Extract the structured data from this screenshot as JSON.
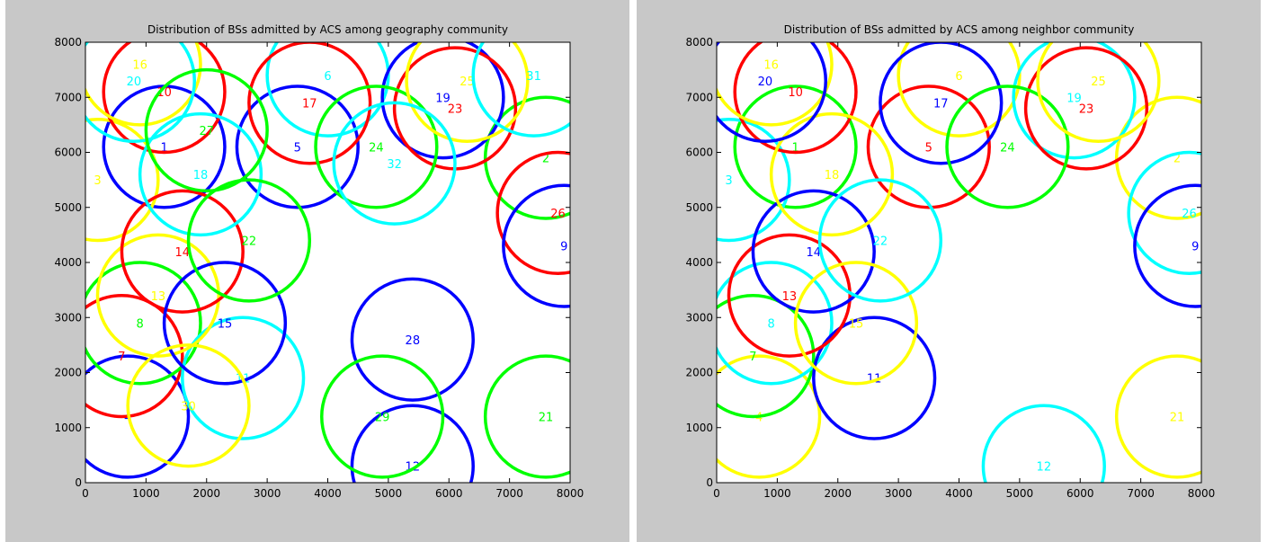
{
  "colors": {
    "red": "#ff0000",
    "green": "#00ff00",
    "blue": "#0000ff",
    "cyan": "#00ffff",
    "yellow": "#ffff00",
    "figure_bg": "#c8c8c8"
  },
  "chart_data": [
    {
      "type": "scatter",
      "title": "Distribution of BSs admitted by ACS among geography community",
      "xlabel": "",
      "ylabel": "",
      "xlim": [
        0,
        8000
      ],
      "ylim": [
        0,
        8000
      ],
      "xticks": [
        0,
        1000,
        2000,
        3000,
        4000,
        5000,
        6000,
        7000,
        8000
      ],
      "yticks": [
        0,
        1000,
        2000,
        3000,
        4000,
        5000,
        6000,
        7000,
        8000
      ],
      "grid": false,
      "radius": 1000,
      "circles": [
        {
          "id": "1",
          "x": 1300,
          "y": 6100,
          "color": "blue"
        },
        {
          "id": "2",
          "x": 7600,
          "y": 5900,
          "color": "green"
        },
        {
          "id": "3",
          "x": 200,
          "y": 5500,
          "color": "yellow"
        },
        {
          "id": "4",
          "x": 700,
          "y": 1200,
          "color": "blue"
        },
        {
          "id": "5",
          "x": 3500,
          "y": 6100,
          "color": "blue"
        },
        {
          "id": "6",
          "x": 4000,
          "y": 7400,
          "color": "cyan"
        },
        {
          "id": "7",
          "x": 600,
          "y": 2300,
          "color": "red"
        },
        {
          "id": "8",
          "x": 900,
          "y": 2900,
          "color": "green"
        },
        {
          "id": "10",
          "x": 1300,
          "y": 7100,
          "color": "red"
        },
        {
          "id": "11",
          "x": 2600,
          "y": 1900,
          "color": "cyan"
        },
        {
          "id": "12",
          "x": 5400,
          "y": 300,
          "color": "blue"
        },
        {
          "id": "13",
          "x": 1200,
          "y": 3400,
          "color": "yellow"
        },
        {
          "id": "14",
          "x": 1600,
          "y": 4200,
          "color": "red"
        },
        {
          "id": "15",
          "x": 2300,
          "y": 2900,
          "color": "blue"
        },
        {
          "id": "16",
          "x": 900,
          "y": 7600,
          "color": "yellow"
        },
        {
          "id": "17",
          "x": 3700,
          "y": 6900,
          "color": "red"
        },
        {
          "id": "18",
          "x": 1900,
          "y": 5600,
          "color": "cyan"
        },
        {
          "id": "19",
          "x": 5900,
          "y": 7000,
          "color": "blue"
        },
        {
          "id": "20",
          "x": 800,
          "y": 7300,
          "color": "cyan"
        },
        {
          "id": "21",
          "x": 7600,
          "y": 1200,
          "color": "green"
        },
        {
          "id": "22",
          "x": 2700,
          "y": 4400,
          "color": "green"
        },
        {
          "id": "23",
          "x": 6100,
          "y": 6800,
          "color": "red"
        },
        {
          "id": "24",
          "x": 4800,
          "y": 6100,
          "color": "green"
        },
        {
          "id": "25",
          "x": 6300,
          "y": 7300,
          "color": "yellow"
        },
        {
          "id": "26",
          "x": 7800,
          "y": 4900,
          "color": "red"
        },
        {
          "id": "27",
          "x": 2000,
          "y": 6400,
          "color": "green"
        },
        {
          "id": "28",
          "x": 5400,
          "y": 2600,
          "color": "blue"
        },
        {
          "id": "29",
          "x": 4900,
          "y": 1200,
          "color": "green"
        },
        {
          "id": "30",
          "x": 1700,
          "y": 1400,
          "color": "yellow"
        },
        {
          "id": "31",
          "x": 7400,
          "y": 7400,
          "color": "cyan"
        },
        {
          "id": "32",
          "x": 5100,
          "y": 5800,
          "color": "cyan"
        },
        {
          "id": "9",
          "x": 7900,
          "y": 4300,
          "color": "blue"
        }
      ]
    },
    {
      "type": "scatter",
      "title": "Distribution of BSs admitted by ACS among neighbor community",
      "xlabel": "",
      "ylabel": "",
      "xlim": [
        0,
        8000
      ],
      "ylim": [
        0,
        8000
      ],
      "xticks": [
        0,
        1000,
        2000,
        3000,
        4000,
        5000,
        6000,
        7000,
        8000
      ],
      "yticks": [
        0,
        1000,
        2000,
        3000,
        4000,
        5000,
        6000,
        7000,
        8000
      ],
      "grid": false,
      "radius": 1000,
      "circles": [
        {
          "id": "1",
          "x": 1300,
          "y": 6100,
          "color": "green"
        },
        {
          "id": "2",
          "x": 7600,
          "y": 5900,
          "color": "yellow"
        },
        {
          "id": "3",
          "x": 200,
          "y": 5500,
          "color": "cyan"
        },
        {
          "id": "4",
          "x": 700,
          "y": 1200,
          "color": "yellow"
        },
        {
          "id": "5",
          "x": 3500,
          "y": 6100,
          "color": "red"
        },
        {
          "id": "6",
          "x": 4000,
          "y": 7400,
          "color": "yellow"
        },
        {
          "id": "7",
          "x": 600,
          "y": 2300,
          "color": "green"
        },
        {
          "id": "8",
          "x": 900,
          "y": 2900,
          "color": "cyan"
        },
        {
          "id": "10",
          "x": 1300,
          "y": 7100,
          "color": "red"
        },
        {
          "id": "11",
          "x": 2600,
          "y": 1900,
          "color": "blue"
        },
        {
          "id": "12",
          "x": 5400,
          "y": 300,
          "color": "cyan"
        },
        {
          "id": "13",
          "x": 1200,
          "y": 3400,
          "color": "red"
        },
        {
          "id": "14",
          "x": 1600,
          "y": 4200,
          "color": "blue"
        },
        {
          "id": "15",
          "x": 2300,
          "y": 2900,
          "color": "yellow"
        },
        {
          "id": "16",
          "x": 900,
          "y": 7600,
          "color": "yellow"
        },
        {
          "id": "17",
          "x": 3700,
          "y": 6900,
          "color": "blue"
        },
        {
          "id": "18",
          "x": 1900,
          "y": 5600,
          "color": "yellow"
        },
        {
          "id": "19",
          "x": 5900,
          "y": 7000,
          "color": "cyan"
        },
        {
          "id": "20",
          "x": 800,
          "y": 7300,
          "color": "blue"
        },
        {
          "id": "21",
          "x": 7600,
          "y": 1200,
          "color": "yellow"
        },
        {
          "id": "22",
          "x": 2700,
          "y": 4400,
          "color": "cyan"
        },
        {
          "id": "23",
          "x": 6100,
          "y": 6800,
          "color": "red"
        },
        {
          "id": "24",
          "x": 4800,
          "y": 6100,
          "color": "green"
        },
        {
          "id": "25",
          "x": 6300,
          "y": 7300,
          "color": "yellow"
        },
        {
          "id": "26",
          "x": 7800,
          "y": 4900,
          "color": "cyan"
        },
        {
          "id": "9",
          "x": 7900,
          "y": 4300,
          "color": "blue"
        }
      ]
    }
  ]
}
